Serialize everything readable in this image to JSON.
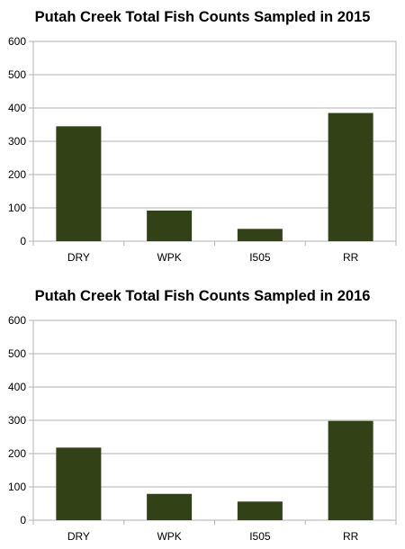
{
  "chart_data": [
    {
      "type": "bar",
      "title": "Putah Creek Total Fish Counts Sampled in 2015",
      "categories": [
        "DRY",
        "WPK",
        "I505",
        "RR"
      ],
      "values": [
        345,
        92,
        37,
        385
      ],
      "xlabel": "",
      "ylabel": "",
      "ylim": [
        0,
        600
      ],
      "yticks": [
        "0",
        "100",
        "200",
        "300",
        "400",
        "500",
        "600"
      ],
      "grid": true,
      "legend": "none",
      "bar_color": "#334216"
    },
    {
      "type": "bar",
      "title": "Putah Creek Total Fish Counts Sampled in 2016",
      "categories": [
        "DRY",
        "WPK",
        "I505",
        "RR"
      ],
      "values": [
        218,
        79,
        56,
        298
      ],
      "xlabel": "",
      "ylabel": "",
      "ylim": [
        0,
        600
      ],
      "yticks": [
        "0",
        "100",
        "200",
        "300",
        "400",
        "500",
        "600"
      ],
      "grid": true,
      "legend": "none",
      "bar_color": "#334216"
    }
  ]
}
